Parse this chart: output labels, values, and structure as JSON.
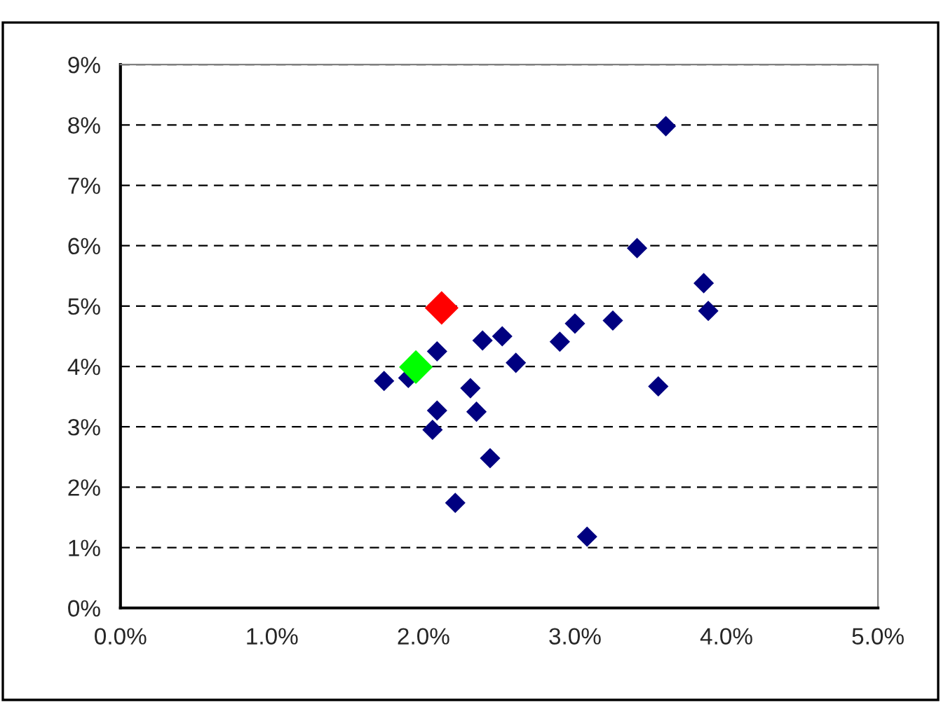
{
  "chart_data": {
    "type": "scatter",
    "marker": "diamond",
    "grid": "y",
    "xlim": [
      0,
      5
    ],
    "ylim": [
      0,
      9
    ],
    "xticks": [
      {
        "value": 0,
        "label": "0.0%"
      },
      {
        "value": 1,
        "label": "1.0%"
      },
      {
        "value": 2,
        "label": "2.0%"
      },
      {
        "value": 3,
        "label": "3.0%"
      },
      {
        "value": 4,
        "label": "4.0%"
      },
      {
        "value": 5,
        "label": "5.0%"
      }
    ],
    "yticks": [
      {
        "value": 0,
        "label": "0%"
      },
      {
        "value": 1,
        "label": "1%"
      },
      {
        "value": 2,
        "label": "2%"
      },
      {
        "value": 3,
        "label": "3%"
      },
      {
        "value": 4,
        "label": "4%"
      },
      {
        "value": 5,
        "label": "5%"
      },
      {
        "value": 6,
        "label": "6%"
      },
      {
        "value": 7,
        "label": "7%"
      },
      {
        "value": 8,
        "label": "8%"
      },
      {
        "value": 9,
        "label": "9%"
      }
    ],
    "series": [
      {
        "color": "#000080",
        "x": [
          1.74,
          1.9,
          2.09,
          2.09,
          2.06,
          2.21,
          2.31,
          2.35,
          2.39,
          2.52,
          2.44,
          2.61,
          2.9,
          3.0,
          3.08,
          3.25,
          3.41,
          3.55,
          3.6,
          3.85,
          3.88
        ],
        "values": [
          3.76,
          3.81,
          4.25,
          3.27,
          2.95,
          1.74,
          3.64,
          3.25,
          4.43,
          4.5,
          2.48,
          4.06,
          4.41,
          4.71,
          1.18,
          4.76,
          5.96,
          3.67,
          7.98,
          5.38,
          4.92
        ]
      },
      {
        "color": "#00ff00",
        "x": [
          1.95
        ],
        "values": [
          3.99
        ]
      },
      {
        "color": "#ff0000",
        "x": [
          2.12
        ],
        "values": [
          4.97
        ]
      }
    ]
  }
}
